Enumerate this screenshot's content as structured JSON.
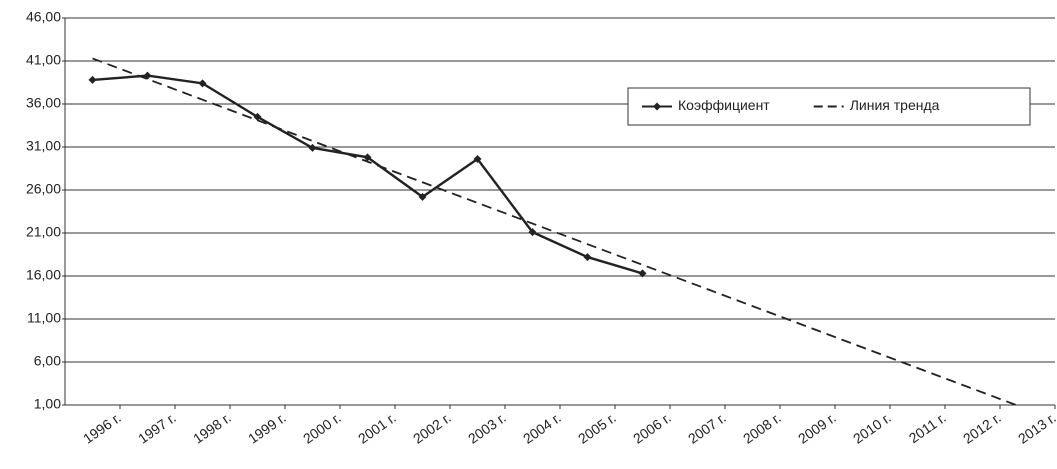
{
  "chart_data": {
    "type": "line",
    "categories": [
      "1996 г.",
      "1997 г.",
      "1998 г.",
      "1999 г.",
      "2000 г.",
      "2001 г.",
      "2002 г.",
      "2003 г.",
      "2004 г.",
      "2005 г.",
      "2006 г.",
      "2007 г.",
      "2008 г.",
      "2009 г.",
      "2010 г.",
      "2011 г.",
      "2012 г.",
      "2013 г."
    ],
    "series": [
      {
        "name": "Коэффициент",
        "color": "#222222",
        "style": "solid",
        "marker": "diamond",
        "values": [
          38.8,
          39.3,
          38.4,
          34.5,
          30.9,
          29.8,
          25.2,
          29.6,
          21.1,
          18.2,
          16.3,
          null,
          null,
          null,
          null,
          null,
          null,
          null
        ]
      },
      {
        "name": "Линия тренда",
        "color": "#222222",
        "style": "dashed",
        "marker": "none",
        "values": [
          41.3,
          38.9,
          36.5,
          34.1,
          31.7,
          29.3,
          26.9,
          24.5,
          22.1,
          19.7,
          17.3,
          14.9,
          12.5,
          10.1,
          7.7,
          5.3,
          2.9,
          0.5
        ]
      }
    ],
    "ylim": [
      1,
      46
    ],
    "yticks": [
      {
        "value": 1,
        "label": "1,00"
      },
      {
        "value": 6,
        "label": "6,00"
      },
      {
        "value": 11,
        "label": "11,00"
      },
      {
        "value": 16,
        "label": "16,00"
      },
      {
        "value": 21,
        "label": "21,00"
      },
      {
        "value": 26,
        "label": "26,00"
      },
      {
        "value": 31,
        "label": "31,00"
      },
      {
        "value": 36,
        "label": "36,00"
      },
      {
        "value": 41,
        "label": "41,00"
      },
      {
        "value": 46,
        "label": "46,00"
      }
    ],
    "grid": true,
    "legend": "upper right"
  }
}
